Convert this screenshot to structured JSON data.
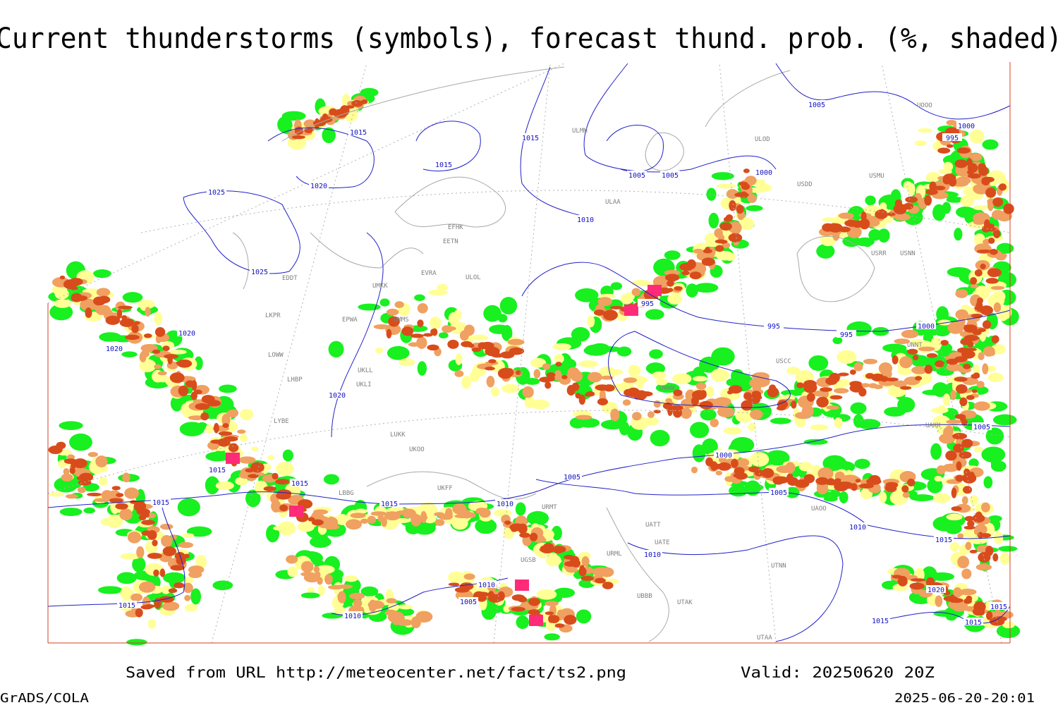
{
  "title": "Current thunderstorms (symbols), forecast thund. prob. (%, shaded)",
  "footer": {
    "saved": "Saved from URL http://meteocenter.net/fact/ts2.png",
    "valid": "Valid: 20250620 20Z",
    "software": "GrADS/COLA",
    "timestamp": "2025-06-20-20:01"
  },
  "isobar_labels": [
    "1015",
    "1015",
    "1015",
    "1020",
    "1025",
    "1025",
    "1010",
    "1005",
    "1005",
    "1005",
    "1000",
    "1000",
    "995",
    "995",
    "995",
    "995",
    "1000",
    "1020",
    "1020",
    "1020",
    "1015",
    "1015",
    "1015",
    "1015",
    "1005",
    "1010",
    "1000",
    "1005",
    "1005",
    "1010",
    "1015",
    "1010",
    "1010",
    "1005",
    "1010",
    "1015",
    "1020",
    "1015",
    "1015",
    "1015"
  ],
  "station_labels": [
    "ULMM",
    "ULOD",
    "USDD",
    "USMU",
    "UOOO",
    "ULAA",
    "EFHK",
    "EETN",
    "EVRA",
    "ULOL",
    "UMKK",
    "EPWA",
    "UMMS",
    "EDDT",
    "LKPR",
    "LOWW",
    "LHBP",
    "UKLL",
    "UKLI",
    "LYBE",
    "LUKK",
    "UKOO",
    "UKFF",
    "LBBG",
    "URMT",
    "UGSB",
    "UTAA",
    "UTNN",
    "UATE",
    "URML",
    "UBBB",
    "UTAK",
    "UAOO",
    "USRR",
    "USNN",
    "USCC",
    "UWWW",
    "UATT",
    "UNNT",
    "UAKK"
  ]
}
